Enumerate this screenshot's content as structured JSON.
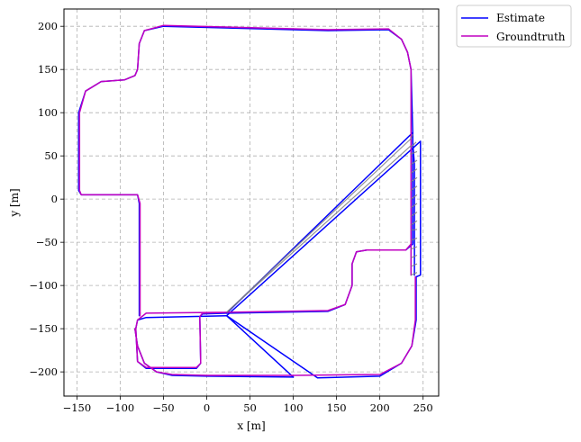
{
  "chart_data": {
    "type": "line",
    "title": "",
    "xlabel": "x [m]",
    "ylabel": "y [m]",
    "xlim": [
      -165,
      268
    ],
    "ylim": [
      -228,
      220
    ],
    "x_ticks": [
      -150,
      -100,
      -50,
      0,
      50,
      100,
      150,
      200,
      250
    ],
    "x_tick_labels": [
      "−150",
      "−100",
      "−50",
      "0",
      "50",
      "100",
      "150",
      "200",
      "250"
    ],
    "y_ticks": [
      -200,
      -150,
      -100,
      -50,
      0,
      50,
      100,
      150,
      200
    ],
    "y_tick_labels": [
      "−200",
      "−150",
      "−100",
      "−50",
      "0",
      "50",
      "100",
      "150",
      "200"
    ],
    "grid": true,
    "legend_position": "outside-top-right",
    "colors": {
      "estimate": "#0000ff",
      "groundtruth": "#c000c0",
      "correspondence": "#808080"
    },
    "series": [
      {
        "name": "Estimate",
        "segments": [
          [
            [
              23,
              -132
            ],
            [
              -5,
              -133
            ],
            [
              -8,
              -136
            ],
            [
              -7,
              -190
            ],
            [
              -12,
              -196
            ],
            [
              -70,
              -196
            ],
            [
              -80,
              -188
            ],
            [
              -82,
              -150
            ],
            [
              -80,
              -140
            ],
            [
              -70,
              -137
            ],
            [
              23,
              -135
            ]
          ],
          [
            [
              -83,
              -150
            ],
            [
              -80,
              -170
            ],
            [
              -72,
              -190
            ],
            [
              -58,
              -200
            ],
            [
              -40,
              -204
            ],
            [
              0,
              -205
            ],
            [
              100,
              -206
            ]
          ],
          [
            [
              23,
              -135
            ],
            [
              100,
              -206
            ]
          ],
          [
            [
              23,
              -135
            ],
            [
              128,
              -207
            ],
            [
              200,
              -205
            ],
            [
              225,
              -190
            ],
            [
              237,
              -170
            ],
            [
              242,
              -140
            ],
            [
              242,
              -90
            ],
            [
              247,
              -88
            ],
            [
              247,
              67
            ],
            [
              23,
              -135
            ]
          ],
          [
            [
              23,
              -132
            ],
            [
              140,
              -130
            ],
            [
              160,
              -122
            ],
            [
              168,
              -100
            ],
            [
              168,
              -75
            ],
            [
              173,
              -61
            ],
            [
              185,
              -59
            ],
            [
              230,
              -59
            ],
            [
              238,
              -52
            ],
            [
              238,
              77
            ],
            [
              23,
              -132
            ]
          ],
          [
            [
              238,
              77
            ],
            [
              238,
              65
            ],
            [
              240,
              40
            ],
            [
              240,
              -88
            ]
          ],
          [
            [
              -77,
              -132
            ],
            [
              -78,
              -135
            ],
            [
              -78,
              -5
            ],
            [
              -80,
              5
            ],
            [
              -92,
              5
            ],
            [
              -145,
              5
            ],
            [
              -148,
              10
            ],
            [
              -148,
              100
            ],
            [
              -140,
              125
            ],
            [
              -122,
              136
            ],
            [
              -95,
              138
            ],
            [
              -83,
              143
            ],
            [
              -80,
              150
            ],
            [
              -78,
              180
            ],
            [
              -72,
              195
            ],
            [
              -50,
              200
            ],
            [
              140,
              195
            ],
            [
              210,
              196
            ],
            [
              225,
              185
            ],
            [
              232,
              170
            ],
            [
              236,
              150
            ],
            [
              238,
              77
            ]
          ]
        ]
      },
      {
        "name": "Groundtruth",
        "segments": [
          [
            [
              23,
              -131
            ],
            [
              -5,
              -132
            ],
            [
              -8,
              -136
            ],
            [
              -7,
              -190
            ],
            [
              -12,
              -195
            ],
            [
              -70,
              -195
            ],
            [
              -80,
              -188
            ],
            [
              -82,
              -150
            ],
            [
              -80,
              -140
            ],
            [
              -70,
              -132
            ],
            [
              23,
              -131
            ]
          ],
          [
            [
              -83,
              -150
            ],
            [
              -80,
              -170
            ],
            [
              -72,
              -190
            ],
            [
              -58,
              -200
            ],
            [
              -40,
              -203
            ],
            [
              0,
              -204
            ],
            [
              100,
              -204
            ]
          ],
          [
            [
              100,
              -204
            ],
            [
              200,
              -203
            ],
            [
              225,
              -190
            ],
            [
              237,
              -170
            ],
            [
              241,
              -140
            ],
            [
              241,
              -90
            ]
          ],
          [
            [
              23,
              -131
            ],
            [
              140,
              -129
            ],
            [
              160,
              -122
            ],
            [
              168,
              -100
            ],
            [
              168,
              -75
            ],
            [
              173,
              -61
            ],
            [
              185,
              -59
            ],
            [
              230,
              -59
            ],
            [
              236,
              -52
            ],
            [
              236,
              70
            ],
            [
              236,
              -88
            ]
          ],
          [
            [
              -77,
              -132
            ],
            [
              -77,
              -135
            ],
            [
              -77,
              -5
            ],
            [
              -80,
              5
            ],
            [
              -92,
              5
            ],
            [
              -145,
              5
            ],
            [
              -147,
              10
            ],
            [
              -147,
              100
            ],
            [
              -140,
              125
            ],
            [
              -122,
              136
            ],
            [
              -95,
              138
            ],
            [
              -83,
              143
            ],
            [
              -80,
              150
            ],
            [
              -78,
              180
            ],
            [
              -72,
              195
            ],
            [
              -50,
              201
            ],
            [
              140,
              196
            ],
            [
              210,
              197
            ],
            [
              225,
              185
            ],
            [
              232,
              170
            ],
            [
              236,
              150
            ],
            [
              236,
              70
            ]
          ]
        ]
      }
    ],
    "correspondence_lines": [
      [
        [
          238,
          75
        ],
        [
          236,
          70
        ]
      ],
      [
        [
          242,
          66
        ],
        [
          236,
          60
        ]
      ],
      [
        [
          243,
          55
        ],
        [
          235,
          52
        ]
      ],
      [
        [
          243,
          45
        ],
        [
          236,
          40
        ]
      ],
      [
        [
          243,
          35
        ],
        [
          236,
          30
        ]
      ],
      [
        [
          243,
          25
        ],
        [
          236,
          20
        ]
      ],
      [
        [
          243,
          15
        ],
        [
          236,
          10
        ]
      ],
      [
        [
          243,
          5
        ],
        [
          236,
          0
        ]
      ],
      [
        [
          243,
          -5
        ],
        [
          236,
          -10
        ]
      ],
      [
        [
          243,
          -15
        ],
        [
          236,
          -20
        ]
      ],
      [
        [
          243,
          -25
        ],
        [
          236,
          -30
        ]
      ],
      [
        [
          243,
          -35
        ],
        [
          236,
          -36
        ]
      ],
      [
        [
          243,
          -45
        ],
        [
          236,
          -48
        ]
      ],
      [
        [
          243,
          -55
        ],
        [
          236,
          -58
        ]
      ],
      [
        [
          243,
          -65
        ],
        [
          236,
          -68
        ]
      ],
      [
        [
          243,
          -75
        ],
        [
          236,
          -78
        ]
      ],
      [
        [
          243,
          -85
        ],
        [
          236,
          -88
        ]
      ],
      [
        [
          23,
          -131
        ],
        [
          236,
          62
        ]
      ],
      [
        [
          23,
          -131
        ],
        [
          236,
          70
        ]
      ]
    ]
  },
  "legend": {
    "estimate_label": "Estimate",
    "groundtruth_label": "Groundtruth"
  }
}
